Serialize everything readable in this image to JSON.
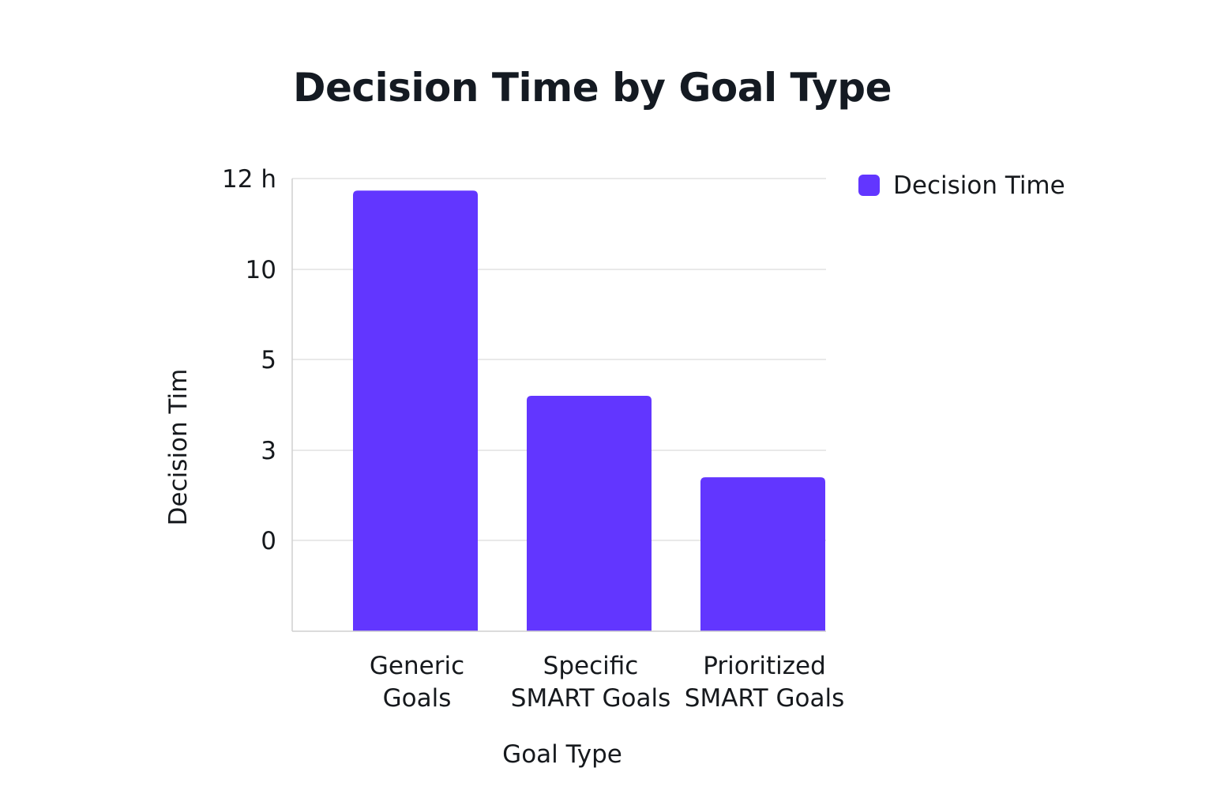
{
  "chart_data": {
    "type": "bar",
    "title": "Decision Time by Goal Type",
    "xlabel": "Goal Type",
    "ylabel": "Decision Tim",
    "y_ticks": [
      "12 h",
      "10",
      "5",
      "3",
      "0"
    ],
    "categories": [
      [
        "Generic",
        "Goals"
      ],
      [
        "Specific",
        "SMART Goals"
      ],
      [
        "Prioritized",
        "SMART Goals"
      ]
    ],
    "series": [
      {
        "name": "Decision Time",
        "color": "#6236ff",
        "values": [
          11.6,
          4.8,
          2.1
        ]
      }
    ],
    "ylim": [
      -3,
      12
    ],
    "grid": true,
    "legend_position": "top-right"
  }
}
